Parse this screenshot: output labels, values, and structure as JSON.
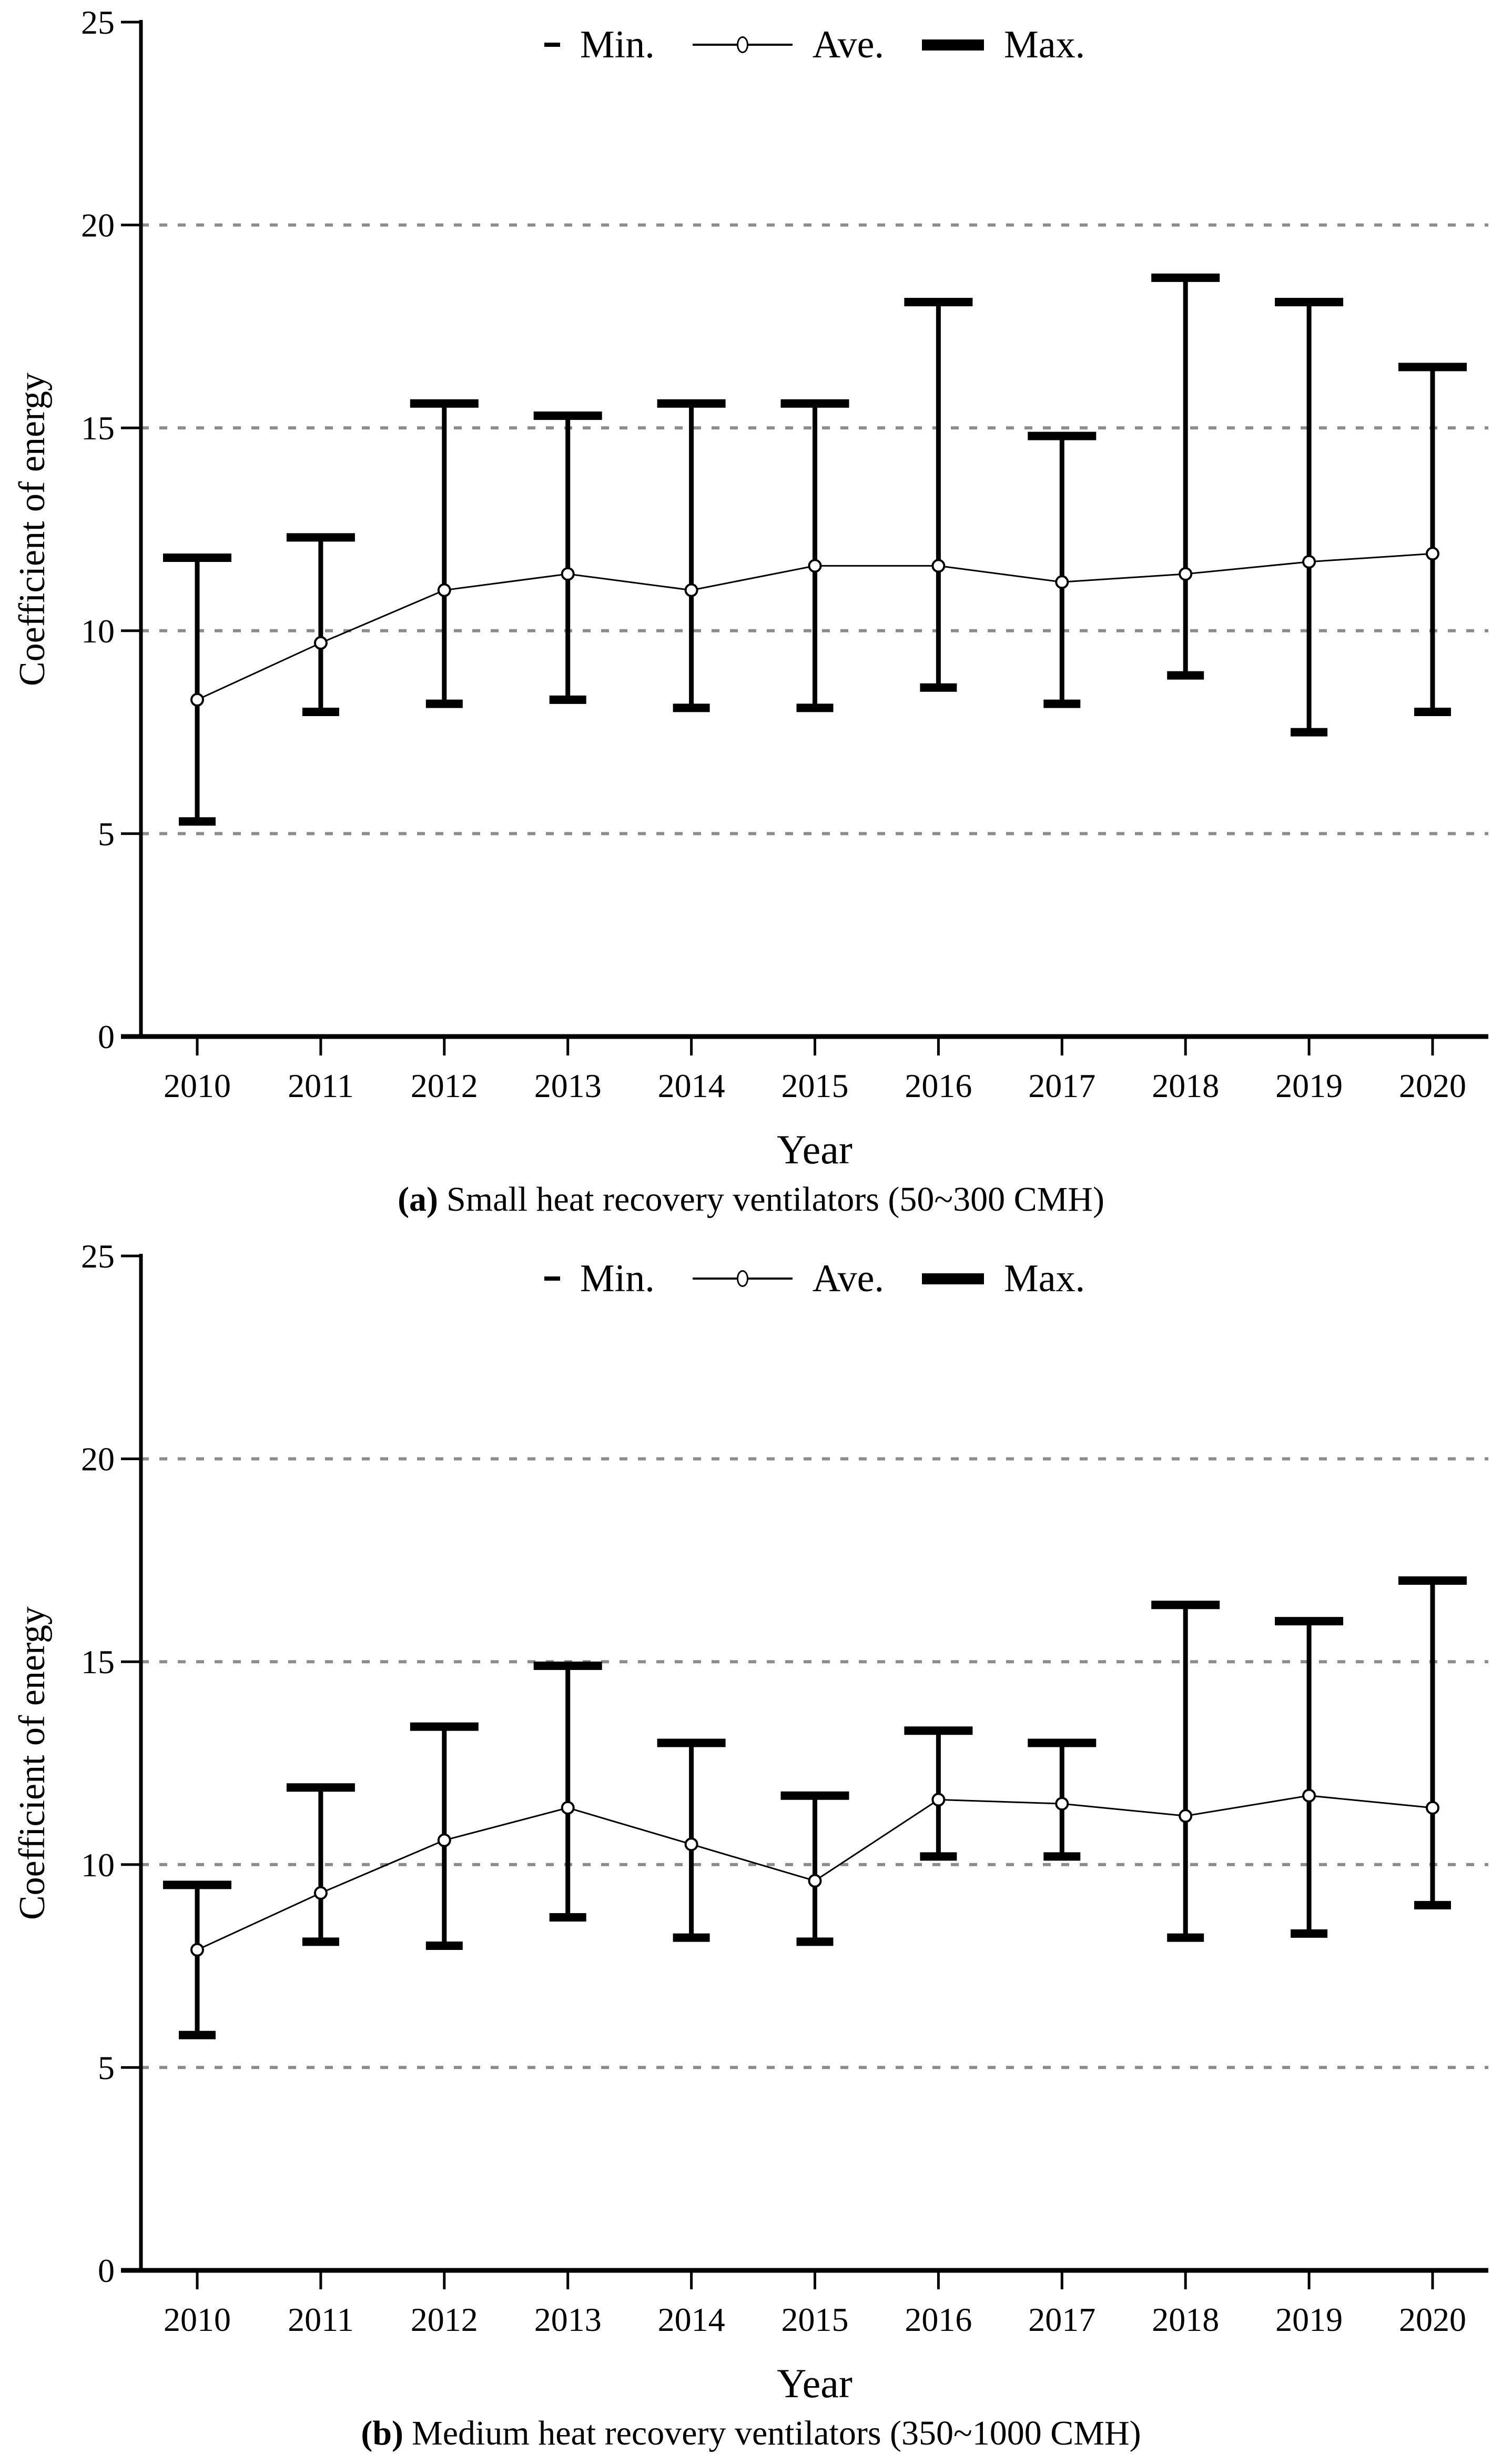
{
  "page": {
    "background": "#ffffff",
    "text_color": "#000000",
    "grid_color": "#8c8c8c"
  },
  "chart_data": [
    {
      "type": "line",
      "subtype": "min-ave-max-errorbar",
      "caption_label": "(a)",
      "caption_text": "Small heat recovery ventilators (50~300 CMH)",
      "xlabel": "Year",
      "ylabel": "Coefficient of energy",
      "ylim": [
        0,
        25
      ],
      "yticks": [
        0,
        5,
        10,
        15,
        20,
        25
      ],
      "gridlines": [
        5,
        10,
        15,
        20
      ],
      "grid_style": "dashed-horizontal",
      "legend_position": "top-center",
      "categories": [
        "2010",
        "2011",
        "2012",
        "2013",
        "2014",
        "2015",
        "2016",
        "2017",
        "2018",
        "2019",
        "2020"
      ],
      "series": [
        {
          "name": "Min.",
          "symbol": "thin-dash",
          "values": [
            5.3,
            8.0,
            8.2,
            8.3,
            8.1,
            8.1,
            8.6,
            8.2,
            8.9,
            7.5,
            8.0
          ]
        },
        {
          "name": "Ave.",
          "symbol": "line-with-open-circle",
          "values": [
            8.3,
            9.7,
            11.0,
            11.4,
            11.0,
            11.6,
            11.6,
            11.2,
            11.4,
            11.7,
            11.9
          ]
        },
        {
          "name": "Max.",
          "symbol": "thick-bar",
          "values": [
            11.8,
            12.3,
            15.6,
            15.3,
            15.6,
            15.6,
            18.1,
            14.8,
            18.7,
            18.1,
            16.5
          ]
        }
      ]
    },
    {
      "type": "line",
      "subtype": "min-ave-max-errorbar",
      "caption_label": "(b)",
      "caption_text": "Medium heat recovery ventilators (350~1000 CMH)",
      "xlabel": "Year",
      "ylabel": "Coefficient of energy",
      "ylim": [
        0,
        25
      ],
      "yticks": [
        0,
        5,
        10,
        15,
        20,
        25
      ],
      "gridlines": [
        5,
        10,
        15,
        20
      ],
      "grid_style": "dashed-horizontal",
      "legend_position": "top-center",
      "categories": [
        "2010",
        "2011",
        "2012",
        "2013",
        "2014",
        "2015",
        "2016",
        "2017",
        "2018",
        "2019",
        "2020"
      ],
      "series": [
        {
          "name": "Min.",
          "symbol": "thin-dash",
          "values": [
            5.8,
            8.1,
            8.0,
            8.7,
            8.2,
            8.1,
            10.2,
            10.2,
            8.2,
            8.3,
            9.0
          ]
        },
        {
          "name": "Ave.",
          "symbol": "line-with-open-circle",
          "values": [
            7.9,
            9.3,
            10.6,
            11.4,
            10.5,
            9.6,
            11.6,
            11.5,
            11.2,
            11.7,
            11.4
          ]
        },
        {
          "name": "Max.",
          "symbol": "thick-bar",
          "values": [
            9.5,
            11.9,
            13.4,
            14.9,
            13.0,
            11.7,
            13.3,
            13.0,
            16.4,
            16.0,
            17.0
          ]
        }
      ]
    }
  ]
}
